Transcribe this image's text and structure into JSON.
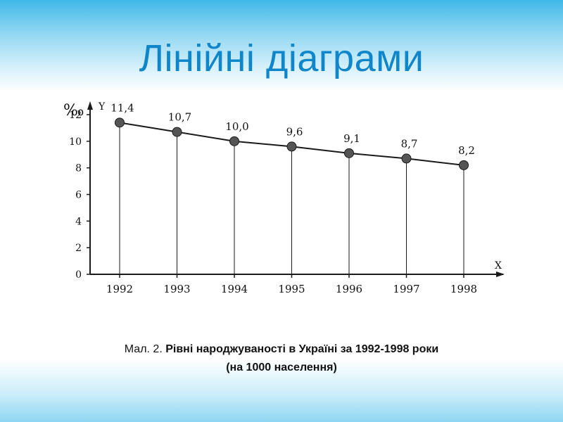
{
  "slide": {
    "title": "Лінійні діаграми",
    "caption_prefix": "Мал. 2. ",
    "caption_line1": "Рівні народжуваності в Україні за 1992-1998 роки",
    "caption_line2": "(на 1000 населення)"
  },
  "colors": {
    "title": "#0f86c9",
    "band": "#8fd6f2",
    "line": "#1a1a1a",
    "marker": "#555555"
  },
  "chart_data": {
    "type": "line",
    "title": "",
    "xlabel": "X",
    "ylabel": "Y",
    "yunit": "‰",
    "categories": [
      "1992",
      "1993",
      "1994",
      "1995",
      "1996",
      "1997",
      "1998"
    ],
    "values": [
      11.4,
      10.7,
      10.0,
      9.6,
      9.1,
      8.7,
      8.2
    ],
    "data_labels": [
      "11,4",
      "10,7",
      "10,0",
      "9,6",
      "9,1",
      "8,7",
      "8,2"
    ],
    "yticks": [
      0,
      2,
      4,
      6,
      8,
      10,
      12
    ],
    "ylim": [
      0,
      12.5
    ],
    "grid": false,
    "drop_lines": true
  }
}
